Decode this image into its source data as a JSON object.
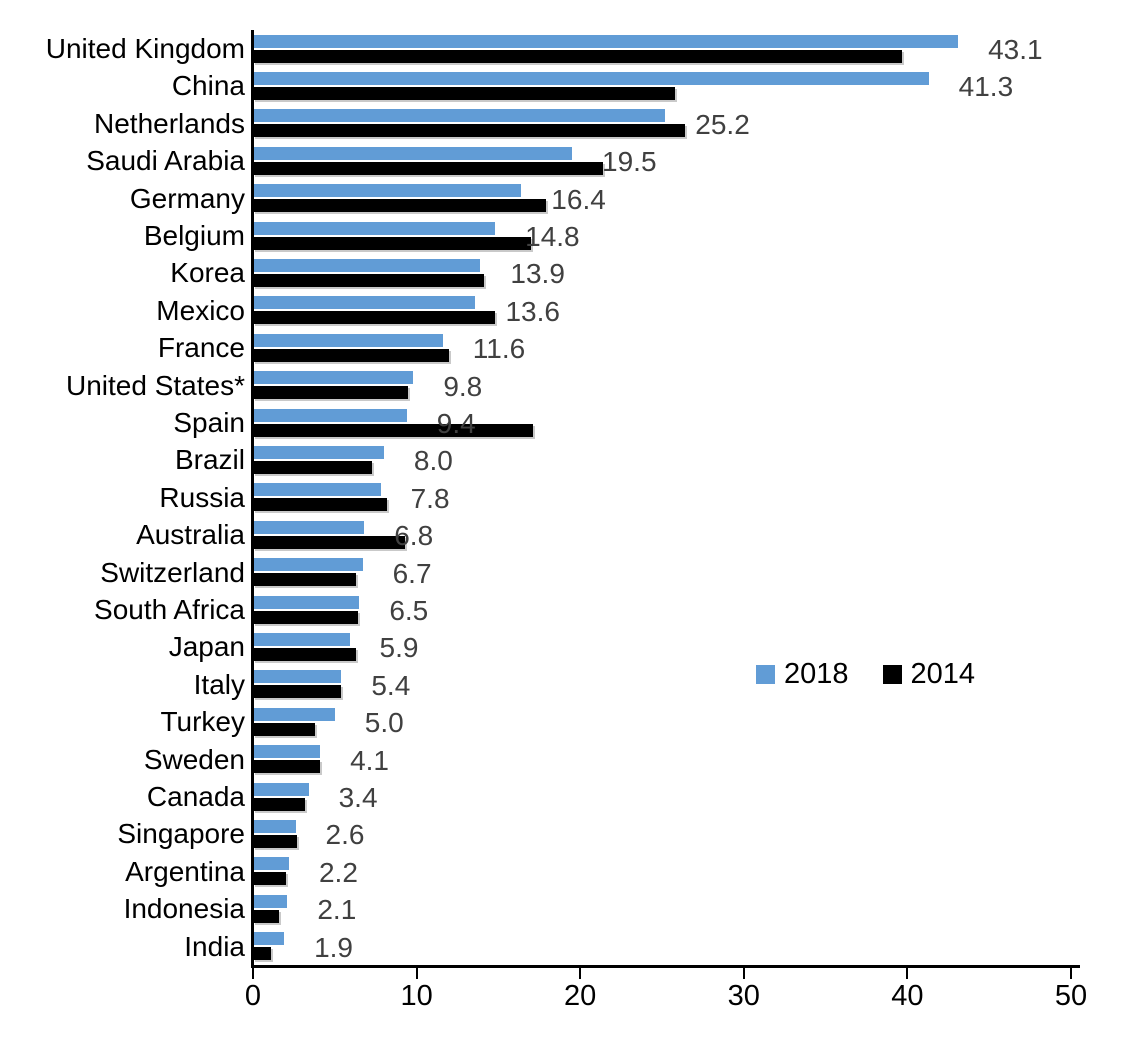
{
  "chart_data": {
    "type": "bar",
    "orientation": "horizontal",
    "title": "",
    "xlabel": "",
    "ylabel": "",
    "categories": [
      "United Kingdom",
      "China",
      "Netherlands",
      "Saudi Arabia",
      "Germany",
      "Belgium",
      "Korea",
      "Mexico",
      "France",
      "United States*",
      "Spain",
      "Brazil",
      "Russia",
      "Australia",
      "Switzerland",
      "South Africa",
      "Japan",
      "Italy",
      "Turkey",
      "Sweden",
      "Canada",
      "Singapore",
      "Argentina",
      "Indonesia",
      "India"
    ],
    "series": [
      {
        "name": "2018",
        "color": "#619CD6",
        "values": [
          43.1,
          41.3,
          25.2,
          19.5,
          16.4,
          14.8,
          13.9,
          13.6,
          11.6,
          9.8,
          9.4,
          8.0,
          7.8,
          6.8,
          6.7,
          6.5,
          5.9,
          5.4,
          5.0,
          4.1,
          3.4,
          2.6,
          2.2,
          2.1,
          1.9
        ]
      },
      {
        "name": "2014",
        "color": "#000000",
        "values": [
          39.7,
          25.8,
          26.4,
          21.4,
          17.9,
          17.0,
          14.1,
          14.8,
          12.0,
          9.5,
          17.1,
          7.3,
          8.2,
          9.3,
          6.3,
          6.4,
          6.3,
          5.4,
          3.8,
          4.1,
          3.2,
          2.7,
          2.0,
          1.6,
          1.1
        ]
      }
    ],
    "value_labels_series": "2018",
    "value_labels": [
      "43.1",
      "41.3",
      "25.2",
      "19.5",
      "16.4",
      "14.8",
      "13.9",
      "13.6",
      "11.6",
      "9.8",
      "9.4",
      "8.0",
      "7.8",
      "6.8",
      "6.7",
      "6.5",
      "5.9",
      "5.4",
      "5.0",
      "4.1",
      "3.4",
      "2.6",
      "2.2",
      "2.1",
      "1.9"
    ],
    "xlim": [
      0,
      50
    ],
    "x_ticks": [
      0,
      10,
      20,
      30,
      40,
      50
    ],
    "grid": false,
    "legend_position": "middle-right"
  },
  "legend": {
    "items": [
      {
        "label": "2018",
        "color": "#619CD6"
      },
      {
        "label": "2014",
        "color": "#000000"
      }
    ]
  },
  "colors": {
    "bar_2018": "#619CD6",
    "bar_2014": "#000000",
    "value_label": "#404040",
    "axis": "#000000",
    "background": "#FFFFFF"
  }
}
